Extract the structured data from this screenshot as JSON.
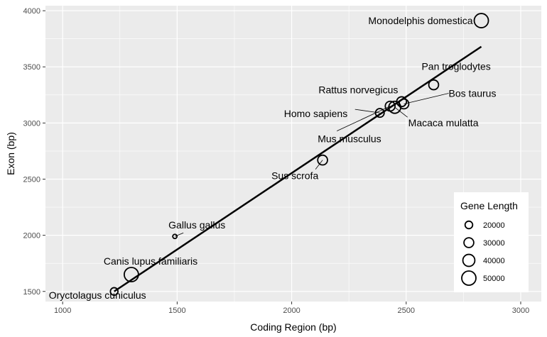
{
  "chart_data": {
    "type": "scatter",
    "xlabel": "Coding Region (bp)",
    "ylabel": "Exon (bp)",
    "xlim": [
      925,
      3090
    ],
    "ylim": [
      1410,
      4045
    ],
    "x_ticks": [
      1000,
      1500,
      2000,
      2500,
      3000
    ],
    "y_ticks": [
      1500,
      2000,
      2500,
      3000,
      3500,
      4000
    ],
    "grid": true,
    "background": "#ebebeb",
    "grid_color": "#ffffff",
    "point_color": "#000000",
    "points": [
      {
        "label": "Monodelphis domestica",
        "x": 2828,
        "y": 3912,
        "size": 50000
      },
      {
        "label": "Pan troglodytes",
        "x": 2620,
        "y": 3340,
        "size": 30000
      },
      {
        "label": "Rattus norvegicus",
        "x": 2480,
        "y": 3190,
        "size": 30000
      },
      {
        "label": "Bos taurus",
        "x": 2490,
        "y": 3170,
        "size": 30000
      },
      {
        "label": "Homo sapiens",
        "x": 2385,
        "y": 3090,
        "size": 25000
      },
      {
        "label": "Macaca mulatta",
        "x": 2450,
        "y": 3140,
        "size": 40000
      },
      {
        "label": "Mus musculus",
        "x": 2430,
        "y": 3150,
        "size": 30000
      },
      {
        "label": "Sus scrofa",
        "x": 2135,
        "y": 2670,
        "size": 30000
      },
      {
        "label": "Gallus gallus",
        "x": 1490,
        "y": 1990,
        "size": 5000
      },
      {
        "label": "Canis lupus familiaris",
        "x": 1300,
        "y": 1650,
        "size": 50000
      },
      {
        "label": "Oryctolagus cuniculus",
        "x": 1225,
        "y": 1500,
        "size": 20000
      }
    ],
    "fit_line": {
      "x": [
        1225,
        2828
      ],
      "y": [
        1500,
        3680
      ]
    },
    "legend": {
      "title": "Gene Length",
      "entries": [
        {
          "label": "20000",
          "size": 20000
        },
        {
          "label": "30000",
          "size": 30000
        },
        {
          "label": "40000",
          "size": 40000
        },
        {
          "label": "50000",
          "size": 50000
        }
      ]
    }
  }
}
